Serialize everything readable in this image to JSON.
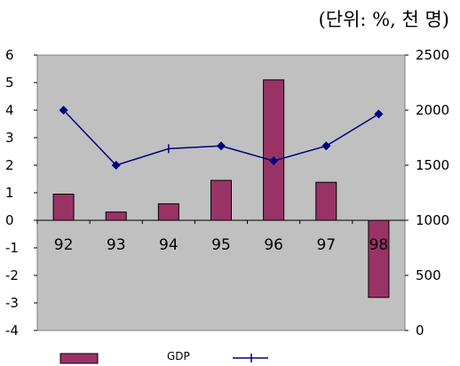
{
  "unit_note": "(단위: %, 천 명)",
  "colors": {
    "plot_bg": "#c0c0c0",
    "bar": "#993366",
    "line": "#000080",
    "axis": "#808080"
  },
  "chart_data": {
    "type": "bar",
    "categories": [
      "92",
      "93",
      "94",
      "95",
      "96",
      "97",
      "98"
    ],
    "series": [
      {
        "name": "GDP",
        "kind": "bar",
        "axis": "left",
        "values": [
          0.95,
          0.3,
          0.6,
          1.45,
          5.1,
          1.38,
          -2.8
        ]
      },
      {
        "kind": "line",
        "axis": "right",
        "marker": "diamond",
        "values": [
          2000,
          1500,
          1650,
          1675,
          1540,
          1675,
          1965
        ]
      }
    ],
    "y_left": {
      "ticks": [
        "6",
        "5",
        "4",
        "3",
        "2",
        "1",
        "0",
        "-1",
        "-2",
        "-3",
        "-4"
      ],
      "ylim": [
        -4,
        6
      ]
    },
    "y_right": {
      "ticks": [
        "2500",
        "2000",
        "1500",
        "1000",
        "500",
        "0"
      ],
      "ylim": [
        0,
        2500
      ]
    },
    "legend": {
      "entries": [
        "GDP",
        ""
      ],
      "placement": "bottom"
    },
    "grid": false
  }
}
